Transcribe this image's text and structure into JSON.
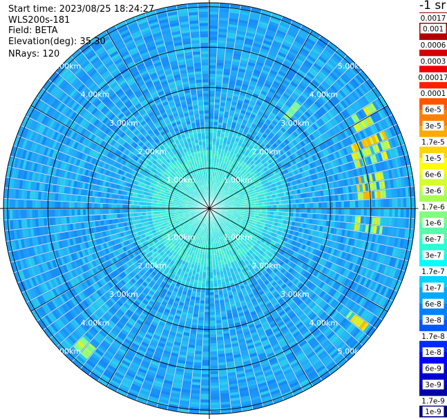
{
  "header": {
    "start_time": "Start time: 2023/08/25 18:24:27",
    "instrument": "WLS200s-181",
    "field": "Field: BETA",
    "elevation": "Elevation(deg): 35.30",
    "nrays": "NRays: 120"
  },
  "colorbar": {
    "unit": "-1 sr",
    "ticks": [
      "0.0017",
      "0.001",
      "0.0006",
      "0.0003",
      "0.00017",
      "0.0001",
      "6e-5",
      "3e-5",
      "1.7e-5",
      "1e-5",
      "6e-6",
      "3e-6",
      "1.7e-6",
      "1e-6",
      "6e-7",
      "3e-7",
      "1.7e-7",
      "1e-7",
      "6e-8",
      "3e-8",
      "1.7e-8",
      "1e-8",
      "6e-9",
      "3e-9",
      "1.7e-9",
      "1e-9"
    ],
    "colors": [
      "#8b0000",
      "#b20000",
      "#d40000",
      "#f00000",
      "#ff2000",
      "#ff5500",
      "#ff8000",
      "#ffaa00",
      "#ffd400",
      "#ffff00",
      "#d4ff2a",
      "#aaff55",
      "#80ff80",
      "#55ffaa",
      "#2affd4",
      "#00ffff",
      "#00d4ff",
      "#00aaff",
      "#0080ff",
      "#0055ff",
      "#002aff",
      "#0000ff",
      "#0000d4",
      "#0000aa",
      "#000080"
    ]
  },
  "chart_data": {
    "type": "heatmap",
    "projection": "polar",
    "field": "BETA",
    "nrays": 120,
    "radial_unit": "km",
    "ring_labels": [
      "1.00km",
      "2.00km",
      "3.00km",
      "4.00km",
      "5.00km"
    ],
    "ring_values_km": [
      1,
      2,
      3,
      4,
      5
    ],
    "r_max_km": 5.1,
    "color_scale": "log",
    "value_range": [
      1e-09,
      0.0017
    ],
    "notes": "Backscatter values mostly 1e-8 to 3e-7; higher (up to ~1e-5) patches at east ~4km and south-east ~4.5km, south-west ~4.5km."
  }
}
